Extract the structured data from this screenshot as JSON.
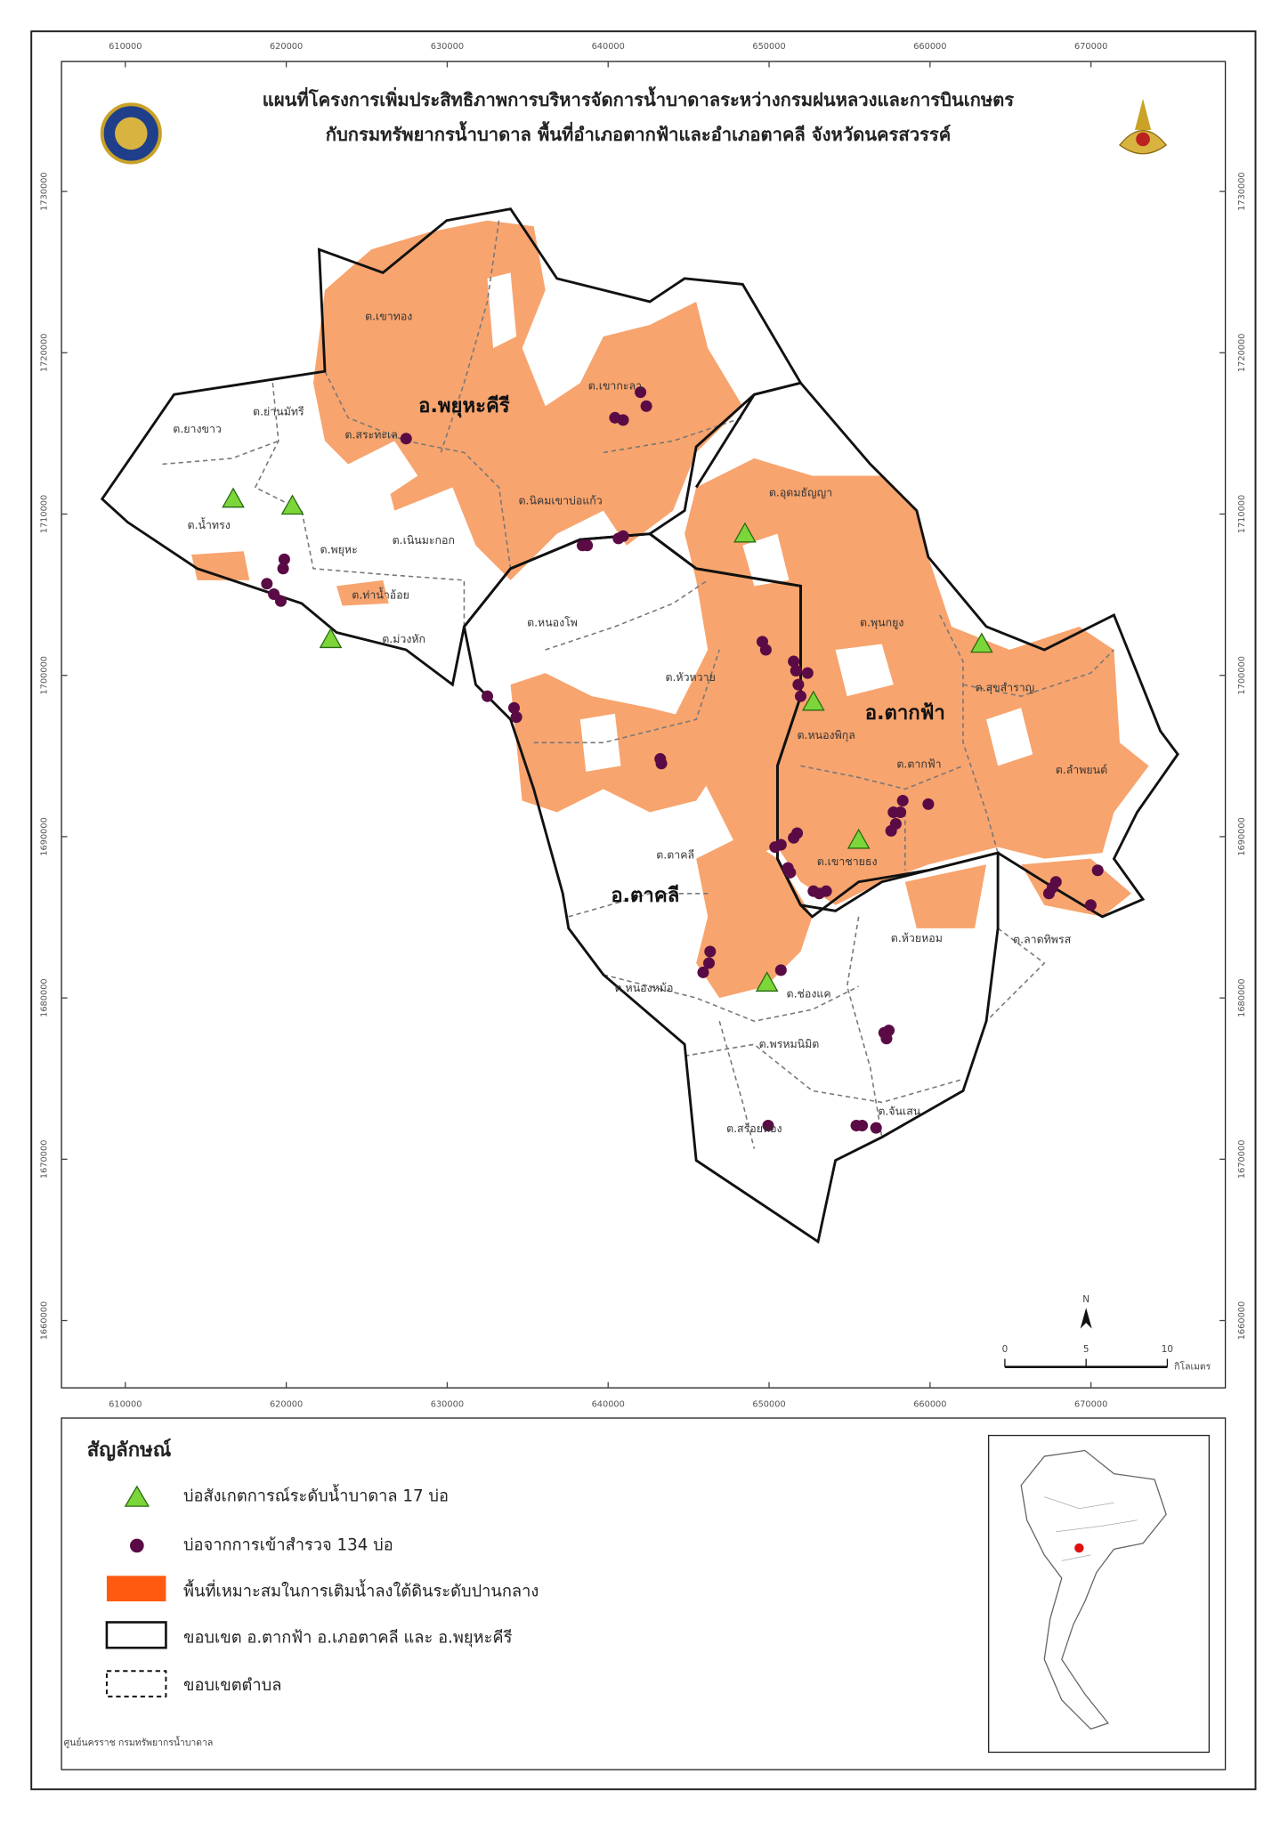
{
  "header": {
    "title_lines": [
      "แผนที่โครงการเพิ่มประสิทธิภาพการบริหารจัดการน้ำบาดาลระหว่างกรมฝนหลวงและการบินเกษตร",
      "กับกรมทรัพยากรน้ำบาดาล พื้นที่อำเภอตากฟ้าและอำเภอตาคลี จังหวัดนครสวรรค์"
    ]
  },
  "map": {
    "easting_ticks": [
      610000,
      620000,
      630000,
      640000,
      650000,
      660000,
      670000
    ],
    "northing_ticks": [
      1730000,
      1720000,
      1710000,
      1700000,
      1690000,
      1680000,
      1670000,
      1660000
    ],
    "districts": [
      "อ.พยุหะคีรี",
      "อ.ตากฟ้า",
      "อ.ตาคลี"
    ],
    "subdistricts": [
      "ต.เขาทอง",
      "ต.ย่านมัทรี",
      "ต.ยางขาว",
      "ต.สระทะเล",
      "ต.เขากะลา",
      "ต.นิคมเขาบ่อแก้ว",
      "ต.น้ำทรง",
      "ต.พยุหะ",
      "ต.เนินมะกอก",
      "ต.ท่าน้ำอ้อย",
      "ต.ม่วงหัก",
      "ต.อุดมธัญญา",
      "ต.หนองโพ",
      "ต.พุนกยูง",
      "ต.หัวหวาย",
      "ต.สุขสำราญ",
      "ต.หนองพิกุล",
      "ต.ตากฟ้า",
      "ต.ลำพยนต์",
      "ต.ตาคลี",
      "ต.เขาชายธง",
      "ต.ห้วยหอม",
      "ต.ลาดทิพรส",
      "ต.หนองหม้อ",
      "ต.ช่องแค",
      "ต.พรหมนิมิต",
      "ต.จันเสน",
      "ต.สร้อยทอง"
    ],
    "north": "N"
  },
  "scale_bar": {
    "ticks": [
      0,
      5,
      10
    ],
    "unit": "กิโลเมตร"
  },
  "legend": {
    "title": "สัญลักษณ์",
    "items": [
      "บ่อสังเกตการณ์ระดับน้ำบาดาล 17 บ่อ",
      "บ่อจากการเข้าสำรวจ 134 บ่อ",
      "พื้นที่เหมาะสมในการเติมน้ำลงใต้ดินระดับปานกลาง",
      "ขอบเขต อ.ตากฟ้า อ.เภอตาคลี และ อ.พยุหะคีรี",
      "ขอบเขตตำบล"
    ]
  },
  "credit": "ศูนย์นครราช กรมทรัพยากรน้ำบาดาล"
}
